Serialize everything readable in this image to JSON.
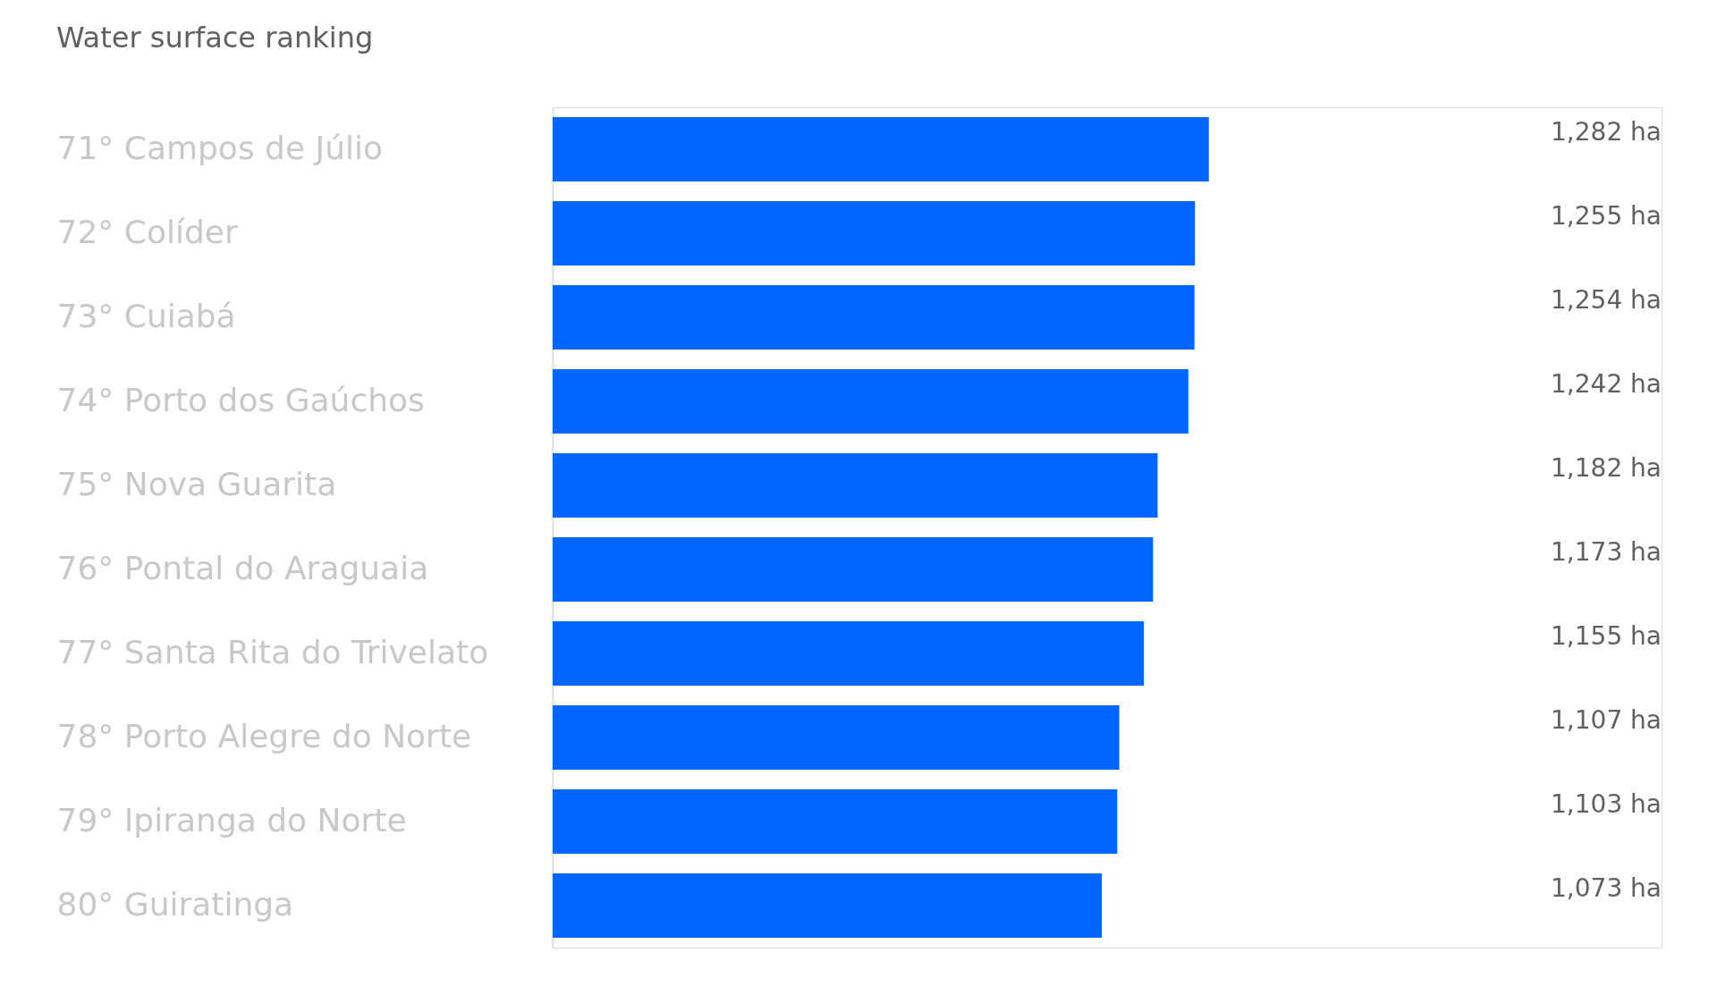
{
  "chart_data": {
    "type": "bar",
    "orientation": "horizontal",
    "title": "Water surface ranking",
    "categories": [
      "71° Campos de Júlio",
      "72° Colíder",
      "73° Cuiabá",
      "74° Porto dos Gaúchos",
      "75° Nova Guarita",
      "76° Pontal do Araguaia",
      "77° Santa Rita do Trivelato",
      "78° Porto Alegre do Norte",
      "79° Ipiranga do Norte",
      "80° Guiratinga"
    ],
    "values": [
      1282,
      1255,
      1254,
      1242,
      1182,
      1173,
      1155,
      1107,
      1103,
      1073
    ],
    "value_labels": [
      "1,282 ha",
      "1,255 ha",
      "1,254 ha",
      "1,242 ha",
      "1,182 ha",
      "1,173 ha",
      "1,155 ha",
      "1,107 ha",
      "1,103 ha",
      "1,073 ha"
    ],
    "color": "#0066ff",
    "tick_labels": "y"
  }
}
